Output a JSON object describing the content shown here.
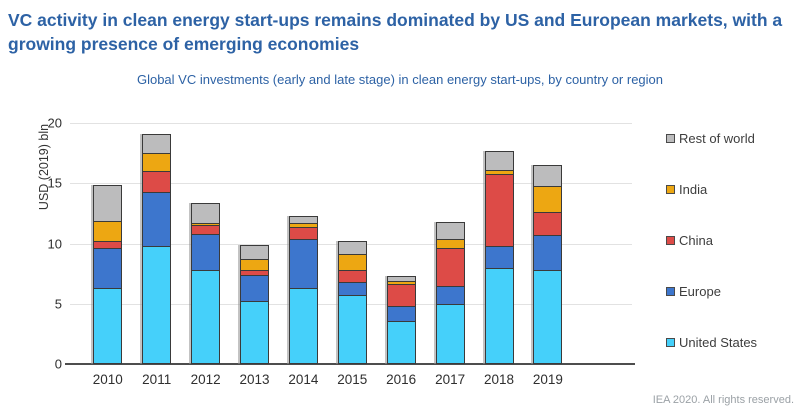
{
  "header": {
    "title": "VC activity in clean energy start-ups remains dominated by US and European markets, with a growing presence of emerging economies",
    "subtitle": "Global VC investments (early and late stage) in clean energy start-ups, by country or region"
  },
  "footer": {
    "credit": "IEA 2020. All rights reserved."
  },
  "colors": {
    "title_text": "#2d62a5",
    "axis_text": "#2f2f2f",
    "legend_text": "#3d3d3d",
    "gridline": "#e2e2e2",
    "axis_line": "#4d4d4d",
    "segment_border": "#3a3a3a",
    "footer_text": "#9ba1a6"
  },
  "chart_data": {
    "type": "bar",
    "stacked": true,
    "title": "Global VC investments (early and late stage) in clean energy start-ups, by country or region",
    "xlabel": "",
    "ylabel": "USD (2019) bln",
    "ylim": [
      0,
      20
    ],
    "yticks": [
      0,
      5,
      10,
      15,
      20
    ],
    "grid": true,
    "legend_position": "right",
    "categories": [
      "2010",
      "2011",
      "2012",
      "2013",
      "2014",
      "2015",
      "2016",
      "2017",
      "2018",
      "2019"
    ],
    "series": [
      {
        "name": "United States",
        "color": "#45d0fa",
        "values": [
          6.3,
          9.8,
          7.8,
          5.2,
          6.3,
          5.7,
          3.6,
          5.0,
          8.0,
          7.8
        ]
      },
      {
        "name": "Europe",
        "color": "#3d76cd",
        "values": [
          3.3,
          4.5,
          3.0,
          2.2,
          4.1,
          1.1,
          1.2,
          1.5,
          1.8,
          2.9
        ]
      },
      {
        "name": "China",
        "color": "#dd4b47",
        "values": [
          0.6,
          1.7,
          0.7,
          0.4,
          1.0,
          1.0,
          1.8,
          3.1,
          6.0,
          1.9
        ]
      },
      {
        "name": "India",
        "color": "#eda712",
        "values": [
          1.7,
          1.5,
          0.2,
          0.9,
          0.3,
          1.3,
          0.3,
          0.8,
          0.3,
          2.2
        ]
      },
      {
        "name": "Rest of world",
        "color": "#bcbcbd",
        "values": [
          3.0,
          1.6,
          1.7,
          1.2,
          0.6,
          1.1,
          0.4,
          1.4,
          1.6,
          1.7
        ]
      }
    ],
    "legend_order": [
      "Rest of world",
      "India",
      "China",
      "Europe",
      "United States"
    ],
    "totals": [
      14.9,
      19.1,
      13.4,
      9.9,
      12.3,
      10.2,
      7.3,
      11.8,
      17.7,
      16.5
    ]
  }
}
